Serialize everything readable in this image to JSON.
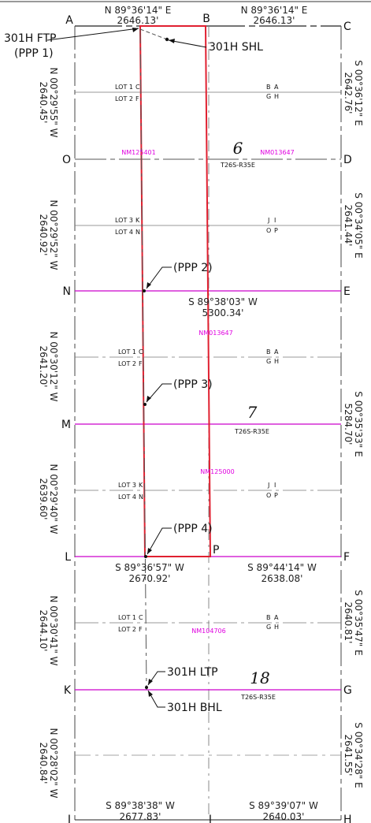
{
  "corners": {
    "A": "A",
    "B": "B",
    "C": "C",
    "D": "D",
    "E": "E",
    "F": "F",
    "G": "G",
    "H": "H",
    "I": "I",
    "J": "J",
    "K": "K",
    "L": "L",
    "M": "M",
    "N": "N",
    "O": "O",
    "P": "P"
  },
  "bearings": {
    "top_left_bearing": "N 89°36'14\" E",
    "top_left_dist": "2646.13'",
    "top_right_bearing": "N 89°36'14\" E",
    "top_right_dist": "2646.13'",
    "mid_bearing": "S 89°38'03\" W",
    "mid_dist": "5300.34'",
    "lf_left_bearing": "S 89°36'57\" W",
    "lf_left_dist": "2670.92'",
    "lf_right_bearing": "S 89°44'14\" W",
    "lf_right_dist": "2638.08'",
    "bot_left_bearing": "S 89°38'38\" W",
    "bot_left_dist": "2677.83'",
    "bot_right_bearing": "S 89°39'07\" W",
    "bot_right_dist": "2640.03'",
    "left_1": "N 00°29'55\" W",
    "left_1_dist": "2640.45'",
    "left_2": "N 00°29'52\" W",
    "left_2_dist": "2640.92'",
    "left_3": "N 00°30'12\" W",
    "left_3_dist": "2641.20'",
    "left_4": "N 00°29'40\" W",
    "left_4_dist": "2639.60'",
    "left_5": "N 00°30'41\" W",
    "left_5_dist": "2644.10'",
    "left_6": "N 00°28'02\" W",
    "left_6_dist": "2640.84'",
    "right_1": "S 00°36'12\" E",
    "right_1_dist": "2642.76'",
    "right_2": "S 00°34'05\" E",
    "right_2_dist": "2641.44'",
    "right_3": "S 00°35'33\" E",
    "right_3_dist": "5284.70'",
    "right_4": "S 00°35'47\" E",
    "right_4_dist": "2640.81'",
    "right_5": "S 00°34'28\" E",
    "right_5_dist": "2641.55'"
  },
  "callouts": {
    "ftp": "301H FTP",
    "ppp1": "(PPP 1)",
    "shl": "301H SHL",
    "ppp2": "(PPP 2)",
    "ppp3": "(PPP 3)",
    "ppp4": "(PPP 4)",
    "ltp": "301H LTP",
    "bhl": "301H BHL"
  },
  "sections": {
    "s6": "6",
    "s7": "7",
    "s18": "18",
    "twp": "T26S-R35E"
  },
  "leases": {
    "l1": "NM125401",
    "l2": "NM013647",
    "l3": "NM013647",
    "l4": "NM125000",
    "l5": "NM104706"
  },
  "lots": {
    "lot1": "LOT 1",
    "lot2": "LOT 2",
    "lot3": "LOT 3",
    "lot4": "LOT 4",
    "c": "C",
    "f": "F",
    "k": "K",
    "n": "N",
    "b": "B",
    "a": "A",
    "g": "G",
    "h": "H",
    "j": "J",
    "i": "I",
    "o": "O",
    "p": "P"
  },
  "colors": {
    "boundary": "#e02030",
    "section_line": "#cc00cc",
    "line": "#333333"
  }
}
